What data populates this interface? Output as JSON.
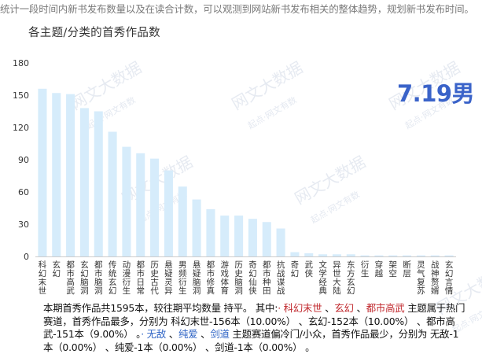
{
  "header": {
    "description": "统计一段时间内新书发布数量以及在读合计数，可以观测到网站新书发布相关的整体趋势，规划新书发布时间。"
  },
  "badge": {
    "text": "7.19男"
  },
  "watermark": {
    "main": "网文大数据",
    "sub": "起点·网文有数"
  },
  "colors": {
    "bar": "#d6ecfb",
    "axis": "#cccccc",
    "hot_text": "#c0282d",
    "cold_text": "#2f64c5",
    "badge": "#3a63c9"
  },
  "chart_data": {
    "type": "bar",
    "title": "各主题/分类的首秀作品数",
    "xlabel": "",
    "ylabel": "",
    "ylim": [
      0,
      180
    ],
    "yticks": [
      0,
      30,
      60,
      90,
      120,
      150,
      180
    ],
    "grid": false,
    "categories": [
      "科幻末世",
      "玄幻",
      "都市高武",
      "玄幻脑洞",
      "都市脑洞",
      "传统玄幻",
      "动漫衍生",
      "都市日常",
      "历史古代",
      "悬疑灵异",
      "男频衍生",
      "悬疑脑洞",
      "都市修真",
      "游戏体育",
      "历史脑洞",
      "奇幻仙侠",
      "都市种田",
      "抗战谍战",
      "奇幻",
      "武侠",
      "文学经典",
      "异世大陆",
      "东方玄幻",
      "衍生",
      "穿越",
      "架空",
      "断层",
      "灵气复苏",
      "战神赘婿",
      "玄幻言情"
    ],
    "values": [
      156,
      152,
      151,
      138,
      135,
      116,
      102,
      96,
      91,
      80,
      65,
      53,
      44,
      38,
      38,
      35,
      32,
      26,
      4,
      3,
      2,
      2,
      2,
      1,
      1,
      1,
      1,
      1,
      1,
      1
    ]
  },
  "summary": {
    "p1": "本期首秀作品共1595本，较往期平均数量 持平。 其中:",
    "hot_1": "· 科幻末世",
    "sep_1": " 、",
    "hot_2": "玄幻",
    "sep_2": " 、",
    "hot_3": "都市高武",
    "p2": " 主题属于热门赛道，首秀作品最多，分别为 科幻末世-156本（10.00%） 、玄幻-152本（10.00%） 、都市高武-151本（9.00%） 。",
    "cold_1": "· 无敌",
    "sep_3": " 、",
    "cold_2": "纯爱",
    "sep_4": " 、",
    "cold_3": "剑道",
    "p3": " 主题赛道偏冷门/小众，首秀作品最少，分别为 无敌-1本（0.00%） 、纯爱-1本（0.00%） 、剑道-1本（0.00%） 。"
  }
}
